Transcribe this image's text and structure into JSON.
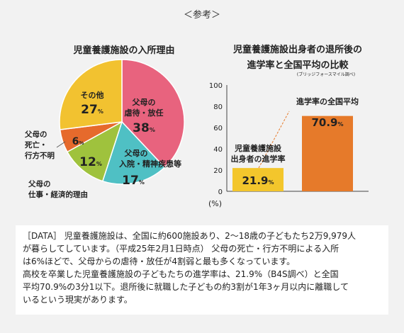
{
  "header": "＜参考＞",
  "pie_title": "児童養護施設の入所理由",
  "bar_title": {
    "line1": "児童養護施設出身者の退所後の",
    "line2": "進学率と全国平均の比較",
    "subnote": "(ブリッジフォースマイル調べ)"
  },
  "colors": {
    "pink": "#e8637e",
    "teal": "#4fc0c4",
    "green": "#9fc23d",
    "orange": "#e66a2c",
    "yellow": "#f2c230",
    "bar_orange": "#e67a2a",
    "bar_yellow": "#f3c62c"
  },
  "chart_data": [
    {
      "type": "pie",
      "title": "児童養護施設の入所理由",
      "slices": [
        {
          "label": "父母の虐待・放任",
          "value": 38,
          "color": "#e8637e"
        },
        {
          "label": "父母の入院・精神疾患等",
          "value": 17,
          "color": "#4fc0c4"
        },
        {
          "label": "父母の仕事・経済的理由",
          "value": 12,
          "color": "#9fc23d"
        },
        {
          "label": "父母の死亡・行方不明",
          "value": 6,
          "color": "#e66a2c"
        },
        {
          "label": "その他",
          "value": 27,
          "color": "#f2c230"
        }
      ],
      "unit": "%"
    },
    {
      "type": "bar",
      "title": "児童養護施設出身者の退所後の進学率と全国平均の比較",
      "categories": [
        "児童養護施設出身者の進学率",
        "進学率の全国平均"
      ],
      "values": [
        21.9,
        70.9
      ],
      "ylim": [
        0,
        100
      ],
      "yticks": [
        0,
        20,
        40,
        60,
        80,
        100
      ],
      "ylabel": "(%)",
      "value_labels": [
        "21.9%",
        "70.9%"
      ]
    }
  ],
  "pie_labels": {
    "abuse_1": "父母の",
    "abuse_2": "虐待・放任",
    "abuse_val": "38",
    "hosp_1": "父母の",
    "hosp_2": "入院・精神疾患等",
    "hosp_val": "17",
    "work_1": "父母の",
    "work_2": "仕事・経済的理由",
    "work_val": "12",
    "death_1": "父母の",
    "death_2": "死亡・",
    "death_3": "行方不明",
    "death_val": "6",
    "other_1": "その他",
    "other_val": "27",
    "pct": "%"
  },
  "bar_labels": {
    "cat1_line1": "児童養護施設",
    "cat1_line2": "出身者の進学率",
    "cat2": "進学率の全国平均",
    "val1": "21.9",
    "val2": "70.9",
    "pct": "%",
    "yunit": "(%)"
  },
  "data_text": [
    "［DATA］ 児童養護施設は、全国に約600施設あり、2～18歳の子どもたち2万9,979人",
    "が暮らしてしています。（平成25年2月1日時点） 父母の死亡・行方不明による入所",
    "は6%ほどで、父母からの虐待・放任が4割弱と最も多くなっています。",
    "高校を卒業した児童養護施設の子どもたちの進学率は、21.9%（B4S調べ）と全国",
    "平均70.9%の3分1以下。退所後に就職した子どもの約3割が1年3ヶ月以内に離職して",
    "いるという現実があります。"
  ]
}
